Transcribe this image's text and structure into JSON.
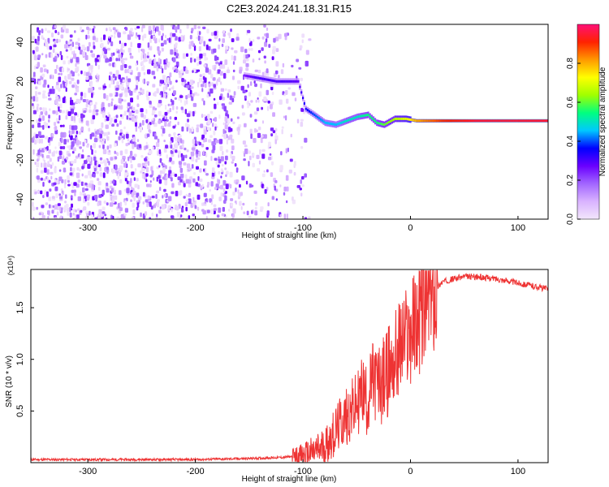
{
  "title": "C2E3.2024.241.18.31.R15",
  "chart_data": [
    {
      "type": "heatmap",
      "xlabel": "Height of straight line (km)",
      "ylabel": "Frequency (Hz)",
      "xlim": [
        -353,
        128
      ],
      "ylim": [
        -50,
        49
      ],
      "x_ticks": [
        -300,
        -200,
        -100,
        0,
        100
      ],
      "y_ticks": [
        -40,
        -20,
        0,
        20,
        40
      ],
      "colorbar": {
        "label": "Normalized spectral amplitude",
        "range": [
          0,
          1
        ],
        "ticks": [
          "0.0",
          "0.2",
          "0.4",
          "0.6",
          "0.8"
        ],
        "colors": [
          "#f2e6fb",
          "#d9b3ff",
          "#a266ff",
          "#6a00ff",
          "#0000ff",
          "#00c8ff",
          "#00ff80",
          "#a0ff00",
          "#ffff00",
          "#ff9900",
          "#ff2200",
          "#ff1077"
        ]
      },
      "ridge": [
        {
          "x": -155,
          "y": 23,
          "amp": 0.25
        },
        {
          "x": -145,
          "y": 22,
          "amp": 0.3
        },
        {
          "x": -135,
          "y": 21,
          "amp": 0.3
        },
        {
          "x": -125,
          "y": 20,
          "amp": 0.3
        },
        {
          "x": -115,
          "y": 20,
          "amp": 0.3
        },
        {
          "x": -105,
          "y": 20,
          "amp": 0.28
        },
        {
          "x": -98,
          "y": 6,
          "amp": 0.35
        },
        {
          "x": -90,
          "y": 3,
          "amp": 0.4
        },
        {
          "x": -80,
          "y": -1,
          "amp": 0.45
        },
        {
          "x": -70,
          "y": -2,
          "amp": 0.45
        },
        {
          "x": -60,
          "y": 0,
          "amp": 0.5
        },
        {
          "x": -50,
          "y": 2,
          "amp": 0.5
        },
        {
          "x": -40,
          "y": 3,
          "amp": 0.55
        },
        {
          "x": -32,
          "y": -1,
          "amp": 0.55
        },
        {
          "x": -25,
          "y": -2,
          "amp": 0.6
        },
        {
          "x": -15,
          "y": 1,
          "amp": 0.65
        },
        {
          "x": -5,
          "y": 1,
          "amp": 0.7
        },
        {
          "x": 5,
          "y": 0,
          "amp": 0.8
        },
        {
          "x": 30,
          "y": 0,
          "amp": 0.9
        },
        {
          "x": 60,
          "y": 0,
          "amp": 0.95
        },
        {
          "x": 90,
          "y": 0,
          "amp": 0.95
        },
        {
          "x": 128,
          "y": 0,
          "amp": 0.95
        }
      ]
    },
    {
      "type": "line",
      "xlabel": "Height of straight line (km)",
      "ylabel": "SNR (10 * v/v)",
      "y_multiplier": "(x10⁴)",
      "xlim": [
        -353,
        128
      ],
      "ylim": [
        0,
        1.87
      ],
      "x_ticks": [
        -300,
        -200,
        -100,
        0,
        100
      ],
      "y_ticks": [
        "0.5",
        "1.0",
        "1.5"
      ],
      "series": [
        {
          "color": "#ee3333",
          "x": [
            -353,
            -300,
            -250,
            -200,
            -150,
            -120,
            -100,
            -90,
            -80,
            -70,
            -60,
            -50,
            -45,
            -40,
            -35,
            -30,
            -25,
            -20,
            -15,
            -10,
            -5,
            0,
            5,
            10,
            15,
            20,
            25,
            30,
            40,
            50,
            60,
            80,
            100,
            128
          ],
          "y": [
            0.03,
            0.03,
            0.03,
            0.03,
            0.04,
            0.05,
            0.07,
            0.1,
            0.15,
            0.3,
            0.45,
            0.55,
            0.7,
            0.6,
            0.8,
            0.75,
            0.8,
            0.9,
            1.0,
            1.1,
            1.2,
            1.25,
            1.35,
            1.45,
            1.55,
            1.62,
            1.7,
            1.75,
            1.78,
            1.8,
            1.8,
            1.78,
            1.74,
            1.68
          ]
        }
      ]
    }
  ]
}
